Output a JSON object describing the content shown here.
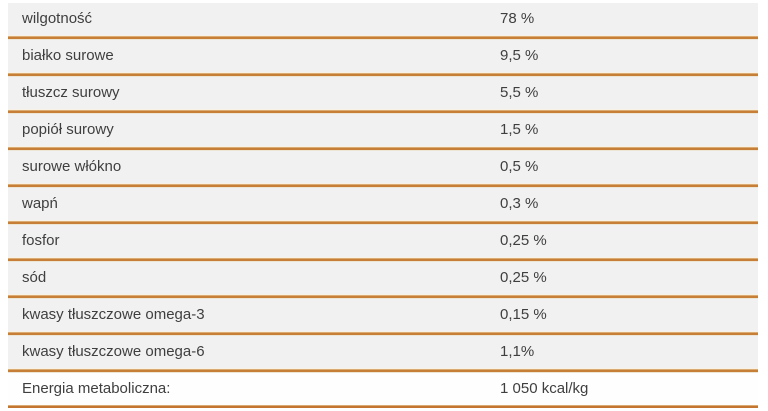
{
  "table": {
    "rows": [
      {
        "label": "wilgotność",
        "value": "78 %"
      },
      {
        "label": "białko surowe",
        "value": "9,5 %"
      },
      {
        "label": "tłuszcz surowy",
        "value": "5,5 %"
      },
      {
        "label": "popiół surowy",
        "value": "1,5 %"
      },
      {
        "label": "surowe włókno",
        "value": "0,5 %"
      },
      {
        "label": "wapń",
        "value": "0,3 %"
      },
      {
        "label": "fosfor",
        "value": "0,25 %"
      },
      {
        "label": "sód",
        "value": "0,25 %"
      },
      {
        "label": "kwasy tłuszczowe omega-3",
        "value": "0,15 %"
      },
      {
        "label": "kwasy tłuszczowe omega-6",
        "value": "1,1%"
      },
      {
        "label": "Energia metaboliczna:",
        "value": "1 050 kcal/kg"
      }
    ]
  },
  "colors": {
    "row_bg": "#f1f1f1",
    "last_row_bg": "#fefefe",
    "text": "#3f3f3f",
    "separator_orange": "#c77e36",
    "separator_orange_dark": "#c4752f",
    "separator_tan": "#dbab74",
    "separator_cream": "#f8f2e6"
  }
}
